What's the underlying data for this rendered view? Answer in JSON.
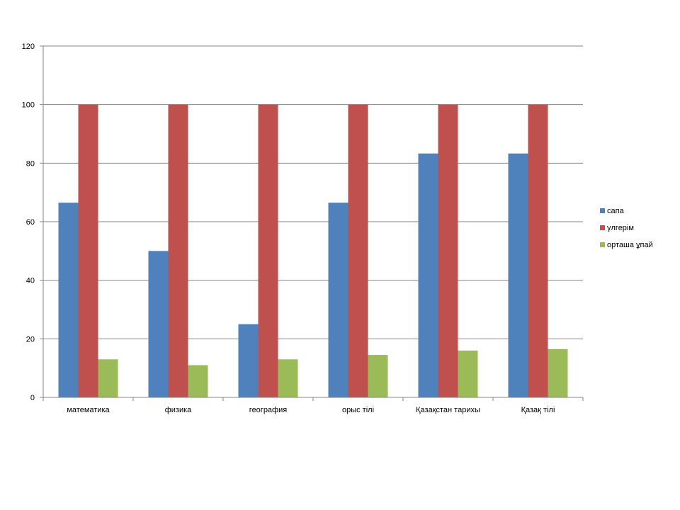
{
  "chart_data": {
    "type": "bar",
    "title": "",
    "xlabel": "",
    "ylabel": "",
    "ylim": [
      0,
      120
    ],
    "yticks": [
      0,
      20,
      40,
      60,
      80,
      100,
      120
    ],
    "grid": true,
    "legend_position": "right",
    "categories": [
      "математика",
      "физика",
      "география",
      "орыс тілі",
      "Қазақстан тарихы",
      "Қазақ тілі"
    ],
    "series": [
      {
        "name": "сапа",
        "color": "#4F81BD",
        "values": [
          66.5,
          50,
          25,
          66.5,
          83.3,
          83.3
        ]
      },
      {
        "name": "үлгерім",
        "color": "#C0504D",
        "values": [
          100,
          100,
          100,
          100,
          100,
          100
        ]
      },
      {
        "name": "орташа ұпай",
        "color": "#9BBB59",
        "values": [
          13,
          11,
          13,
          14.5,
          16,
          16.5
        ]
      }
    ]
  }
}
